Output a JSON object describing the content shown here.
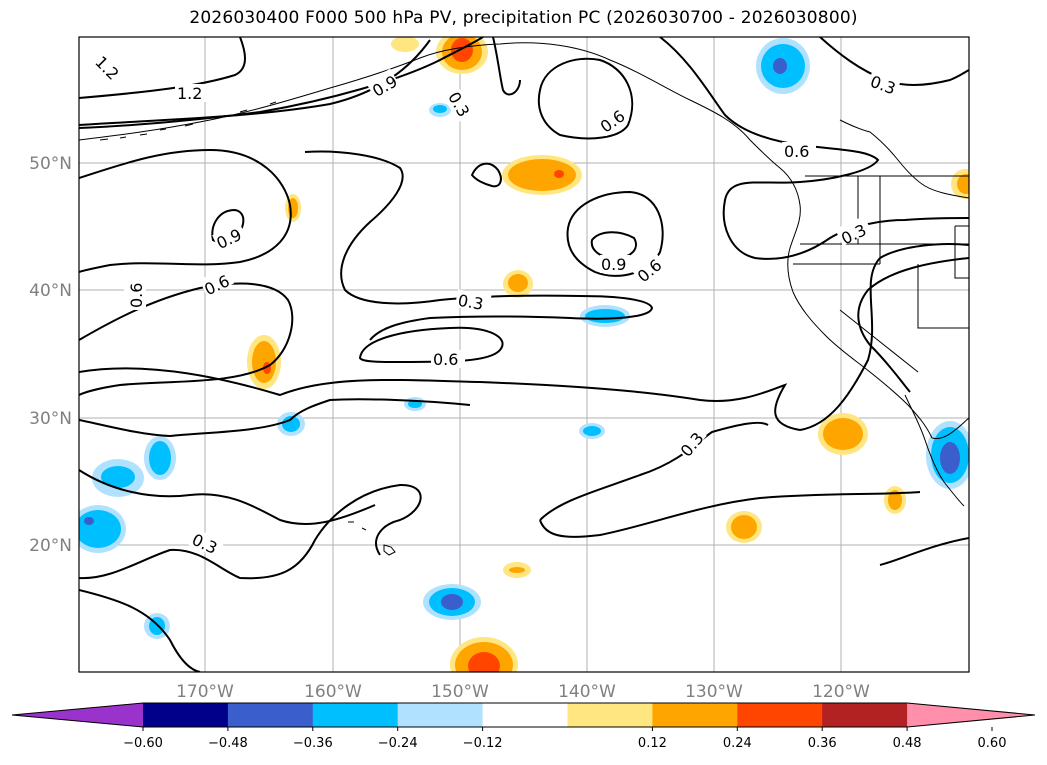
{
  "title": "2026030400 F000 500 hPa PV, precipitation PC (2026030700 - 2026030800)",
  "lon_labels": [
    "170°W",
    "160°W",
    "150°W",
    "140°W",
    "130°W",
    "120°W"
  ],
  "lat_labels": [
    "50°N",
    "40°N",
    "30°N",
    "20°N"
  ],
  "contour_labels": [
    "1.2",
    "1.2",
    "0.9",
    "0.3",
    "0.6",
    "0.3",
    "0.6",
    "0.9",
    "0.6",
    "0.9",
    "0.6",
    "0.6",
    "0.3",
    "0.6",
    "0.3",
    "0.3",
    "0.3"
  ],
  "colorbar": {
    "tick_labels": [
      "−0.60",
      "−0.48",
      "−0.36",
      "−0.24",
      "−0.12",
      "0.12",
      "0.24",
      "0.36",
      "0.48",
      "0.60"
    ],
    "colors": [
      "#9933cc",
      "#00008b",
      "#3a5fcd",
      "#00bfff",
      "#b0e2ff",
      "#ffffff",
      "#ffe680",
      "#ffa500",
      "#ff4500",
      "#b22222",
      "#ff8fab"
    ]
  },
  "colors": {
    "contour": "#000000",
    "grid": "#b0b0b0",
    "coast": "#000000"
  }
}
